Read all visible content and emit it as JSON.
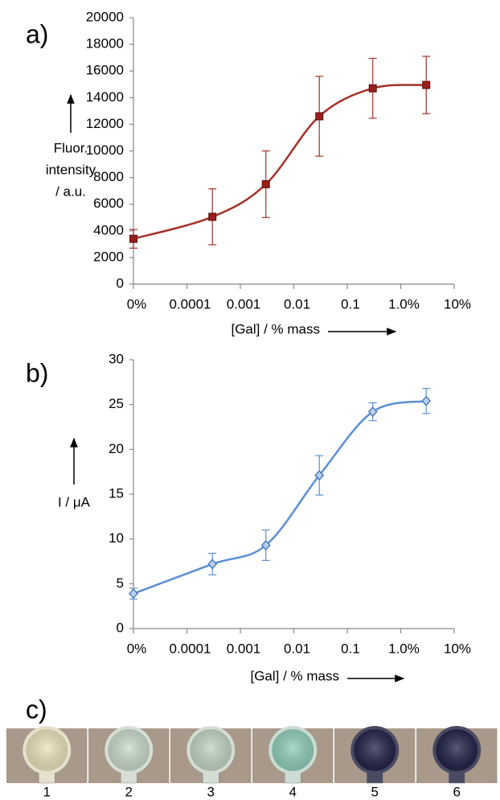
{
  "chart_data": [
    {
      "type": "line",
      "panel": "a)",
      "xlabel": "[Gal] / % mass",
      "ylabel": [
        "Fluor.",
        "intensity",
        "/ a.u."
      ],
      "x_scale": "log",
      "xlim": [
        1e-05,
        10
      ],
      "xticks": [
        {
          "value": 1e-05,
          "label": "0%"
        },
        0.0001,
        0.001,
        0.01,
        0.1,
        {
          "value": 1,
          "label": "1.0%"
        },
        {
          "value": 10,
          "label": "10%"
        }
      ],
      "ylim": [
        0,
        20000
      ],
      "yticks": [
        0,
        2000,
        4000,
        6000,
        8000,
        10000,
        12000,
        14000,
        16000,
        18000,
        20000
      ],
      "x": [
        1e-05,
        0.0003,
        0.003,
        0.03,
        0.3,
        3
      ],
      "values": [
        3400,
        5050,
        7500,
        12600,
        14700,
        14950
      ],
      "errors": [
        700,
        2100,
        2500,
        3000,
        2250,
        2150
      ],
      "color": "#a3312b",
      "marker_color": "#9b1c1c",
      "marker": "square"
    },
    {
      "type": "line",
      "panel": "b)",
      "xlabel": "[Gal] / % mass",
      "ylabel": [
        "I / μA"
      ],
      "x_scale": "log",
      "xlim": [
        1e-05,
        10
      ],
      "xticks": [
        {
          "value": 1e-05,
          "label": "0%"
        },
        0.0001,
        0.001,
        0.01,
        0.1,
        {
          "value": 1,
          "label": "1.0%"
        },
        {
          "value": 10,
          "label": "10%"
        }
      ],
      "ylim": [
        0,
        30
      ],
      "yticks": [
        0,
        5,
        10,
        15,
        20,
        25,
        30
      ],
      "x": [
        1e-05,
        0.0003,
        0.003,
        0.03,
        0.3,
        3
      ],
      "values": [
        3.9,
        7.2,
        9.3,
        17.1,
        24.2,
        25.4
      ],
      "errors": [
        0.6,
        1.2,
        1.7,
        2.2,
        1.0,
        1.4
      ],
      "color": "#5b8fd3",
      "marker_color": "#3f73b8",
      "marker": "diamond"
    }
  ],
  "panel_c": {
    "label": "c)",
    "tiles": [
      "1",
      "2",
      "3",
      "4",
      "5",
      "6"
    ]
  }
}
